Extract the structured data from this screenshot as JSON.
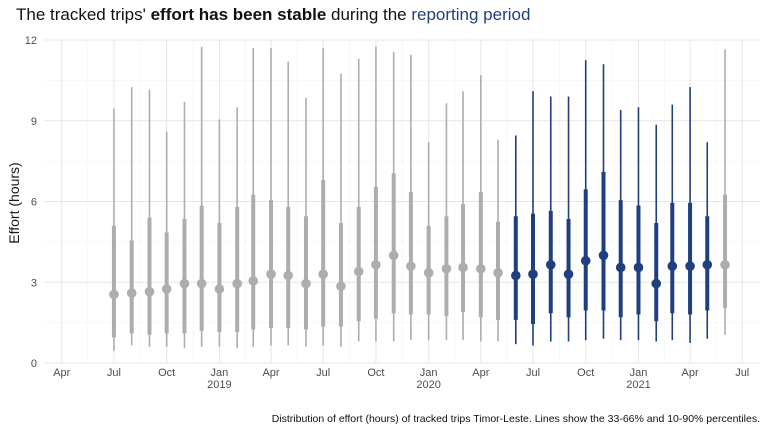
{
  "title": {
    "part1": "The tracked trips' ",
    "part2": "effort has been stable",
    "part3": " during the ",
    "part4": "reporting period"
  },
  "caption": "Distribution of effort (hours) of tracked trips Timor-Leste. Lines show the 33-66% and 10-90% percentiles.",
  "colors": {
    "past": "#adadad",
    "reporting": "#1f3f7f",
    "grid_major": "#e6e6e6",
    "grid_minor": "#f2f2f2"
  },
  "chart_data": {
    "type": "interval",
    "ylabel": "Effort (hours)",
    "ylim": [
      0,
      12
    ],
    "yticks": [
      0,
      3,
      6,
      9,
      12
    ],
    "xlim": [
      "2018-03-01",
      "2021-08-01"
    ],
    "xticks": [
      {
        "date": "2018-04-01",
        "label": "Apr",
        "year": ""
      },
      {
        "date": "2018-07-01",
        "label": "Jul",
        "year": ""
      },
      {
        "date": "2018-10-01",
        "label": "Oct",
        "year": ""
      },
      {
        "date": "2019-01-01",
        "label": "Jan",
        "year": "2019"
      },
      {
        "date": "2019-04-01",
        "label": "Apr",
        "year": ""
      },
      {
        "date": "2019-07-01",
        "label": "Jul",
        "year": ""
      },
      {
        "date": "2019-10-01",
        "label": "Oct",
        "year": ""
      },
      {
        "date": "2020-01-01",
        "label": "Jan",
        "year": "2020"
      },
      {
        "date": "2020-04-01",
        "label": "Apr",
        "year": ""
      },
      {
        "date": "2020-07-01",
        "label": "Jul",
        "year": ""
      },
      {
        "date": "2020-10-01",
        "label": "Oct",
        "year": ""
      },
      {
        "date": "2021-01-01",
        "label": "Jan",
        "year": "2021"
      },
      {
        "date": "2021-04-01",
        "label": "Apr",
        "year": ""
      },
      {
        "date": "2021-07-01",
        "label": "Jul",
        "year": ""
      }
    ],
    "grid": true,
    "points": [
      {
        "date": "2018-07-01",
        "median": 2.55,
        "p33": 0.95,
        "p66": 5.1,
        "p10": 0.45,
        "p90": 9.45,
        "reporting": false
      },
      {
        "date": "2018-08-01",
        "median": 2.6,
        "p33": 1.1,
        "p66": 4.55,
        "p10": 0.65,
        "p90": 10.25,
        "reporting": false
      },
      {
        "date": "2018-09-01",
        "median": 2.65,
        "p33": 1.05,
        "p66": 5.4,
        "p10": 0.6,
        "p90": 10.15,
        "reporting": false
      },
      {
        "date": "2018-10-01",
        "median": 2.75,
        "p33": 1.1,
        "p66": 4.85,
        "p10": 0.6,
        "p90": 8.6,
        "reporting": false
      },
      {
        "date": "2018-11-01",
        "median": 2.95,
        "p33": 1.1,
        "p66": 5.35,
        "p10": 0.55,
        "p90": 9.7,
        "reporting": false
      },
      {
        "date": "2018-12-01",
        "median": 2.95,
        "p33": 1.2,
        "p66": 5.85,
        "p10": 0.6,
        "p90": 11.75,
        "reporting": false
      },
      {
        "date": "2019-01-01",
        "median": 2.75,
        "p33": 1.15,
        "p66": 5.2,
        "p10": 0.6,
        "p90": 9.05,
        "reporting": false
      },
      {
        "date": "2019-02-01",
        "median": 2.95,
        "p33": 1.15,
        "p66": 5.8,
        "p10": 0.55,
        "p90": 9.5,
        "reporting": false
      },
      {
        "date": "2019-03-01",
        "median": 3.05,
        "p33": 1.25,
        "p66": 6.25,
        "p10": 0.6,
        "p90": 11.7,
        "reporting": false
      },
      {
        "date": "2019-04-01",
        "median": 3.3,
        "p33": 1.3,
        "p66": 6.05,
        "p10": 0.65,
        "p90": 11.7,
        "reporting": false
      },
      {
        "date": "2019-05-01",
        "median": 3.25,
        "p33": 1.3,
        "p66": 5.8,
        "p10": 0.65,
        "p90": 11.2,
        "reporting": false
      },
      {
        "date": "2019-06-01",
        "median": 2.95,
        "p33": 1.25,
        "p66": 5.45,
        "p10": 0.6,
        "p90": 9.85,
        "reporting": false
      },
      {
        "date": "2019-07-01",
        "median": 3.3,
        "p33": 1.35,
        "p66": 6.8,
        "p10": 0.65,
        "p90": 11.7,
        "reporting": false
      },
      {
        "date": "2019-08-01",
        "median": 2.85,
        "p33": 1.35,
        "p66": 5.2,
        "p10": 0.6,
        "p90": 10.75,
        "reporting": false
      },
      {
        "date": "2019-09-01",
        "median": 3.4,
        "p33": 1.55,
        "p66": 5.8,
        "p10": 0.8,
        "p90": 11.3,
        "reporting": false
      },
      {
        "date": "2019-10-01",
        "median": 3.65,
        "p33": 1.65,
        "p66": 6.55,
        "p10": 0.8,
        "p90": 11.75,
        "reporting": false
      },
      {
        "date": "2019-11-01",
        "median": 4.0,
        "p33": 1.85,
        "p66": 7.05,
        "p10": 0.8,
        "p90": 11.55,
        "reporting": false
      },
      {
        "date": "2019-12-01",
        "median": 3.6,
        "p33": 1.8,
        "p66": 6.35,
        "p10": 0.85,
        "p90": 11.45,
        "reporting": false
      },
      {
        "date": "2020-01-01",
        "median": 3.35,
        "p33": 1.8,
        "p66": 5.1,
        "p10": 0.85,
        "p90": 8.2,
        "reporting": false
      },
      {
        "date": "2020-02-01",
        "median": 3.5,
        "p33": 1.75,
        "p66": 5.45,
        "p10": 0.85,
        "p90": 9.65,
        "reporting": false
      },
      {
        "date": "2020-03-01",
        "median": 3.55,
        "p33": 1.9,
        "p66": 5.9,
        "p10": 0.85,
        "p90": 10.1,
        "reporting": false
      },
      {
        "date": "2020-04-01",
        "median": 3.5,
        "p33": 1.7,
        "p66": 6.35,
        "p10": 0.8,
        "p90": 10.7,
        "reporting": false
      },
      {
        "date": "2020-05-01",
        "median": 3.35,
        "p33": 1.6,
        "p66": 5.25,
        "p10": 0.8,
        "p90": 8.3,
        "reporting": false
      },
      {
        "date": "2020-06-01",
        "median": 3.25,
        "p33": 1.6,
        "p66": 5.45,
        "p10": 0.7,
        "p90": 8.45,
        "reporting": true
      },
      {
        "date": "2020-07-01",
        "median": 3.3,
        "p33": 1.45,
        "p66": 5.55,
        "p10": 0.65,
        "p90": 10.1,
        "reporting": true
      },
      {
        "date": "2020-08-01",
        "median": 3.65,
        "p33": 1.85,
        "p66": 5.65,
        "p10": 0.8,
        "p90": 9.9,
        "reporting": true
      },
      {
        "date": "2020-09-01",
        "median": 3.3,
        "p33": 1.7,
        "p66": 5.35,
        "p10": 0.8,
        "p90": 9.9,
        "reporting": true
      },
      {
        "date": "2020-10-01",
        "median": 3.8,
        "p33": 1.95,
        "p66": 6.45,
        "p10": 0.85,
        "p90": 11.25,
        "reporting": true
      },
      {
        "date": "2020-11-01",
        "median": 4.0,
        "p33": 1.95,
        "p66": 7.1,
        "p10": 0.9,
        "p90": 11.1,
        "reporting": true
      },
      {
        "date": "2020-12-01",
        "median": 3.55,
        "p33": 1.7,
        "p66": 6.05,
        "p10": 0.85,
        "p90": 9.4,
        "reporting": true
      },
      {
        "date": "2021-01-01",
        "median": 3.55,
        "p33": 1.8,
        "p66": 5.85,
        "p10": 0.85,
        "p90": 9.5,
        "reporting": true
      },
      {
        "date": "2021-02-01",
        "median": 2.95,
        "p33": 1.55,
        "p66": 5.2,
        "p10": 0.8,
        "p90": 8.85,
        "reporting": true
      },
      {
        "date": "2021-03-01",
        "median": 3.6,
        "p33": 1.85,
        "p66": 5.95,
        "p10": 0.85,
        "p90": 9.6,
        "reporting": true
      },
      {
        "date": "2021-04-01",
        "median": 3.6,
        "p33": 1.8,
        "p66": 5.95,
        "p10": 0.75,
        "p90": 10.25,
        "reporting": true
      },
      {
        "date": "2021-05-01",
        "median": 3.65,
        "p33": 1.95,
        "p66": 5.45,
        "p10": 0.9,
        "p90": 8.2,
        "reporting": true
      },
      {
        "date": "2021-06-01",
        "median": 3.65,
        "p33": 2.05,
        "p66": 6.25,
        "p10": 1.05,
        "p90": 11.65,
        "reporting": false
      }
    ]
  }
}
